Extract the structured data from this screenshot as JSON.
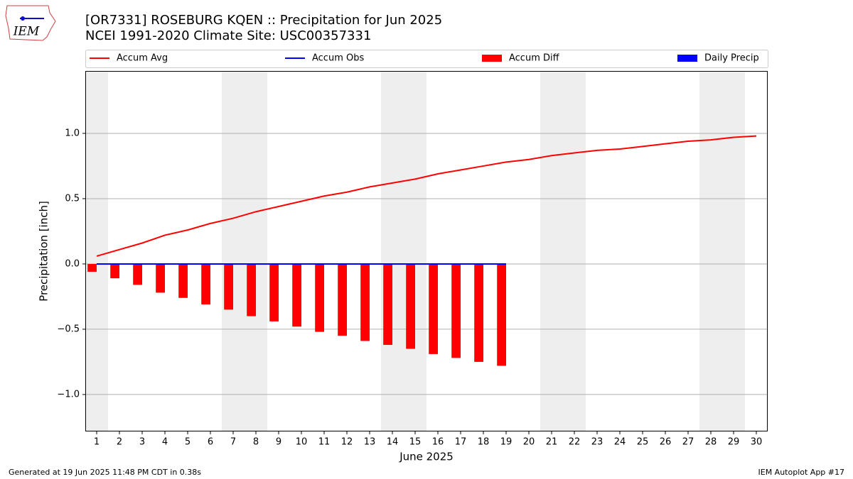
{
  "logo": "IEM",
  "chart_data": {
    "type": "combo",
    "title": "[OR7331] ROSEBURG KQEN :: Precipitation for Jun 2025",
    "subtitle": "NCEI 1991-2020 Climate Site: USC00357331",
    "x_label": "June 2025",
    "y_label": "Precipitation [inch]",
    "x": [
      1,
      2,
      3,
      4,
      5,
      6,
      7,
      8,
      9,
      10,
      11,
      12,
      13,
      14,
      15,
      16,
      17,
      18,
      19,
      20,
      21,
      22,
      23,
      24,
      25,
      26,
      27,
      28,
      29,
      30
    ],
    "xlim": [
      0.5,
      30.5
    ],
    "xticks": [
      1,
      2,
      3,
      4,
      5,
      6,
      7,
      8,
      9,
      10,
      11,
      12,
      13,
      14,
      15,
      16,
      17,
      18,
      19,
      20,
      21,
      22,
      23,
      24,
      25,
      26,
      27,
      28,
      29,
      30
    ],
    "ylim": [
      -1.283,
      1.478
    ],
    "yticks": [
      {
        "value": -1,
        "label": "−1.0"
      },
      {
        "value": -0.5,
        "label": "−0.5"
      },
      {
        "value": 0,
        "label": "0.0"
      },
      {
        "value": 0.5,
        "label": "0.5"
      },
      {
        "value": 1,
        "label": "1.0"
      }
    ],
    "grid": true,
    "shaded_days": [
      1,
      7,
      8,
      14,
      15,
      21,
      22,
      28,
      29
    ],
    "series": [
      {
        "name": "Accum Avg",
        "kind": "line",
        "color": "#ff0000",
        "values": [
          0.06,
          0.11,
          0.16,
          0.22,
          0.26,
          0.31,
          0.35,
          0.4,
          0.44,
          0.48,
          0.52,
          0.55,
          0.59,
          0.62,
          0.65,
          0.69,
          0.72,
          0.75,
          0.78,
          0.8,
          0.83,
          0.85,
          0.87,
          0.88,
          0.9,
          0.92,
          0.94,
          0.95,
          0.97,
          0.98
        ]
      },
      {
        "name": "Accum Obs",
        "kind": "line",
        "color": "#0000ff",
        "values": [
          0,
          0,
          0,
          0,
          0,
          0,
          0,
          0,
          0,
          0,
          0,
          0,
          0,
          0,
          0,
          0,
          0,
          0,
          0,
          null,
          null,
          null,
          null,
          null,
          null,
          null,
          null,
          null,
          null,
          null
        ]
      },
      {
        "name": "Accum Diff",
        "kind": "bar",
        "color": "#ff0000",
        "values": [
          -0.06,
          -0.11,
          -0.16,
          -0.22,
          -0.26,
          -0.31,
          -0.35,
          -0.4,
          -0.44,
          -0.48,
          -0.52,
          -0.55,
          -0.59,
          -0.62,
          -0.65,
          -0.69,
          -0.72,
          -0.75,
          -0.78,
          null,
          null,
          null,
          null,
          null,
          null,
          null,
          null,
          null,
          null,
          null
        ]
      },
      {
        "name": "Daily Precip",
        "kind": "bar",
        "color": "#0000ff",
        "values": [
          0,
          0,
          0,
          0,
          0,
          0,
          0,
          0,
          0,
          0,
          0,
          0,
          0,
          0,
          0,
          0,
          0,
          0,
          0,
          null,
          null,
          null,
          null,
          null,
          null,
          null,
          null,
          null,
          null,
          null
        ]
      }
    ],
    "footer_left": "Generated at 19 Jun 2025 11:48 PM CDT in 0.38s",
    "footer_right": "IEM Autoplot App #17"
  }
}
